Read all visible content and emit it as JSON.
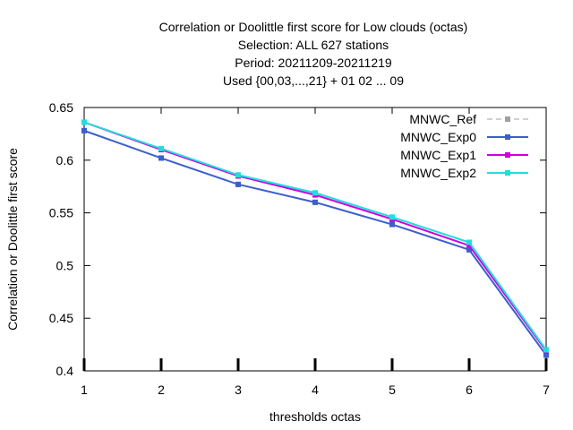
{
  "chart_data": {
    "type": "line",
    "title_lines": [
      "Correlation or Doolittle first score  for Low clouds (octas)",
      "Selection: ALL    627 stations",
      "Period: 20211209-20211219",
      "Used {00,03,...,21} + 01 02 ... 09"
    ],
    "xlabel": "thresholds octas",
    "ylabel": "Correlation or Doolittle first score",
    "x": [
      1,
      2,
      3,
      4,
      5,
      6,
      7
    ],
    "xlim": [
      1,
      7
    ],
    "ylim": [
      0.4,
      0.65
    ],
    "yticks": [
      0.4,
      0.45,
      0.5,
      0.55,
      0.6,
      0.65
    ],
    "ytick_labels": [
      "0.4",
      "0.45",
      "0.5",
      "0.55",
      "0.6",
      "0.65"
    ],
    "xtick_labels": [
      "1",
      "2",
      "3",
      "4",
      "5",
      "6",
      "7"
    ],
    "grid": false,
    "legend_position": "top-right",
    "series": [
      {
        "name": "MNWC_Ref",
        "color": "#a0a0a0",
        "dash": "dashed",
        "values": [
          0.628,
          0.602,
          0.577,
          0.56,
          0.539,
          0.515,
          0.415
        ]
      },
      {
        "name": "MNWC_Exp0",
        "color": "#3b5fcc",
        "dash": "solid",
        "values": [
          0.628,
          0.602,
          0.577,
          0.56,
          0.539,
          0.515,
          0.415
        ]
      },
      {
        "name": "MNWC_Exp1",
        "color": "#cc00dd",
        "dash": "solid",
        "values": [
          0.636,
          0.61,
          0.585,
          0.567,
          0.544,
          0.519,
          0.419
        ]
      },
      {
        "name": "MNWC_Exp2",
        "color": "#22dddd",
        "dash": "solid",
        "values": [
          0.636,
          0.611,
          0.586,
          0.569,
          0.546,
          0.522,
          0.42
        ]
      }
    ]
  }
}
